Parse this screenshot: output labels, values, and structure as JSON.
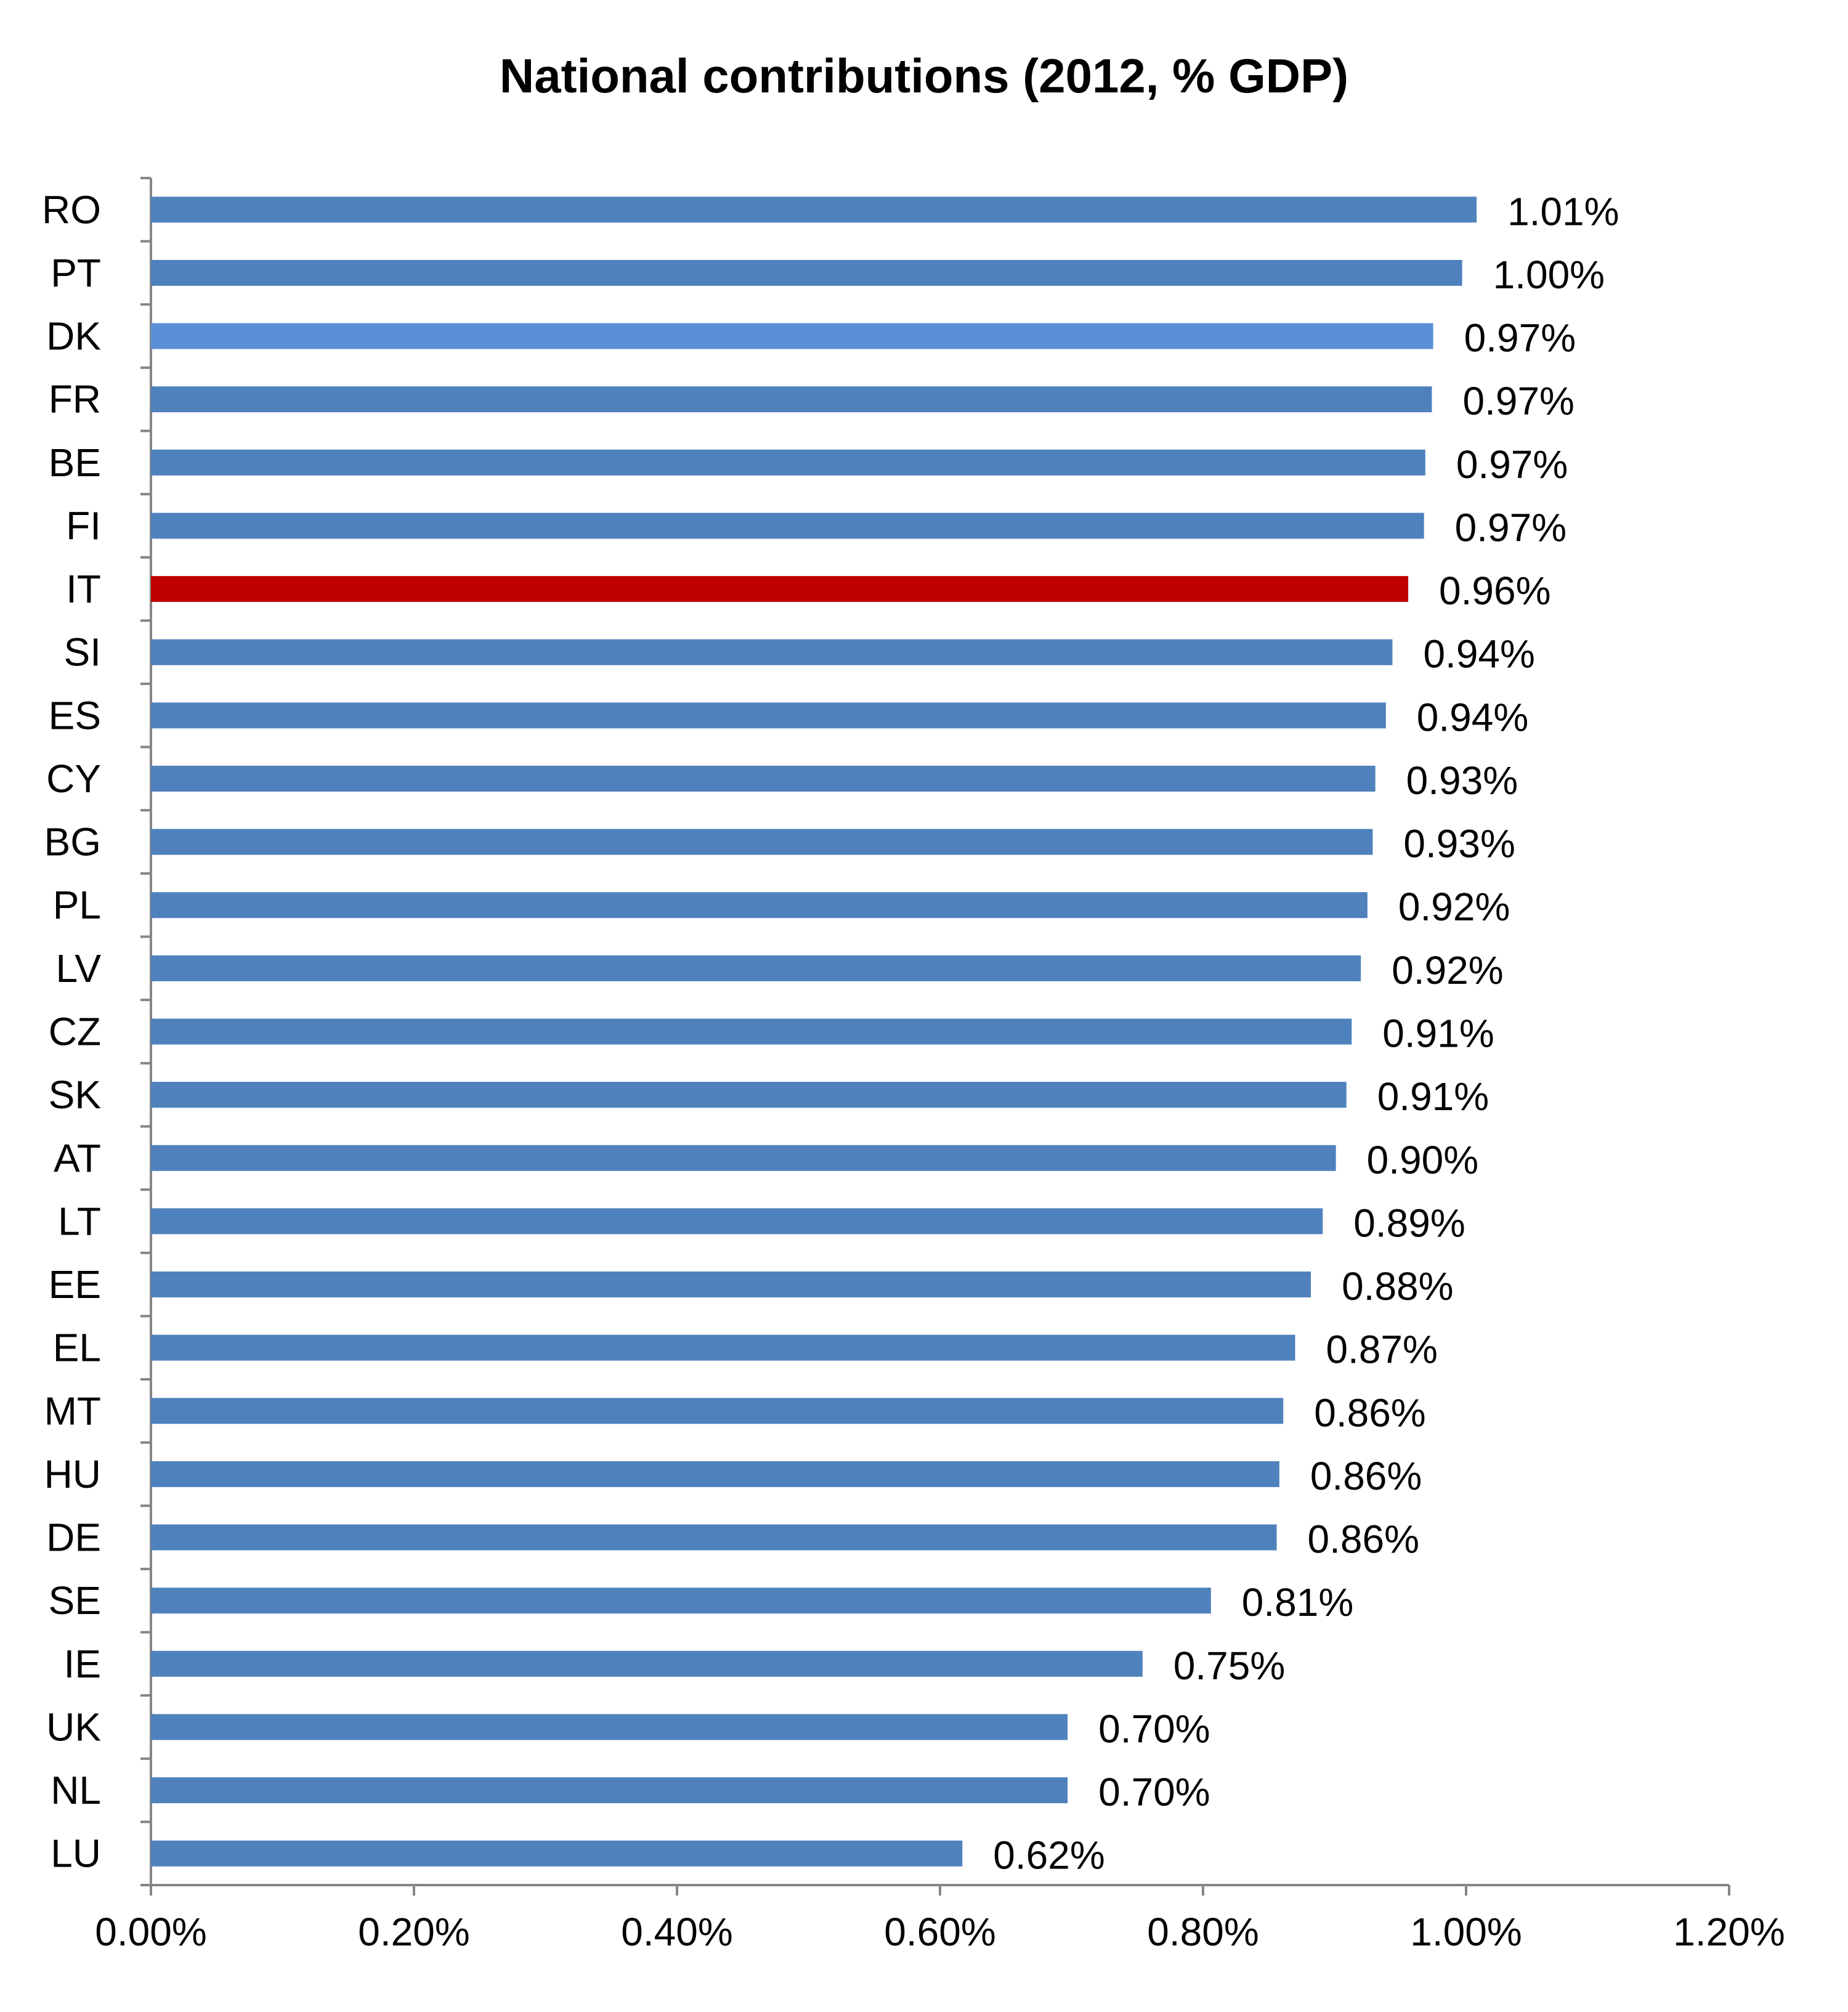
{
  "chart_data": {
    "type": "bar",
    "orientation": "horizontal",
    "title": "National contributions (2012, % GDP)",
    "xlabel": "",
    "ylabel": "",
    "xlim": [
      0,
      1.2
    ],
    "x_ticks": [
      "0.00%",
      "0.20%",
      "0.40%",
      "0.60%",
      "0.80%",
      "1.00%",
      "1.20%"
    ],
    "x_tick_values": [
      0,
      0.2,
      0.4,
      0.6,
      0.8,
      1.0,
      1.2
    ],
    "grid": false,
    "legend": "none",
    "default_color": "#4f81bd",
    "categories": [
      "RO",
      "PT",
      "DK",
      "FR",
      "BE",
      "FI",
      "IT",
      "SI",
      "ES",
      "CY",
      "BG",
      "PL",
      "LV",
      "CZ",
      "SK",
      "AT",
      "LT",
      "EE",
      "EL",
      "MT",
      "HU",
      "DE",
      "SE",
      "IE",
      "UK",
      "NL",
      "LU"
    ],
    "values": [
      1.008,
      0.997,
      0.975,
      0.974,
      0.969,
      0.968,
      0.956,
      0.944,
      0.939,
      0.931,
      0.929,
      0.925,
      0.92,
      0.913,
      0.909,
      0.901,
      0.891,
      0.882,
      0.87,
      0.861,
      0.858,
      0.856,
      0.806,
      0.754,
      0.697,
      0.697,
      0.617
    ],
    "data_labels": [
      "1.01%",
      "1.00%",
      "0.97%",
      "0.97%",
      "0.97%",
      "0.97%",
      "0.96%",
      "0.94%",
      "0.94%",
      "0.93%",
      "0.93%",
      "0.92%",
      "0.92%",
      "0.91%",
      "0.91%",
      "0.90%",
      "0.89%",
      "0.88%",
      "0.87%",
      "0.86%",
      "0.86%",
      "0.86%",
      "0.81%",
      "0.75%",
      "0.70%",
      "0.70%",
      "0.62%"
    ],
    "colors": [
      "#4f81bd",
      "#4f81bd",
      "#5b8fd6",
      "#4f81bd",
      "#4f81bd",
      "#4f81bd",
      "#c00000",
      "#4f81bd",
      "#4f81bd",
      "#4f81bd",
      "#4f81bd",
      "#4f81bd",
      "#4f81bd",
      "#4f81bd",
      "#4f81bd",
      "#4f81bd",
      "#4f81bd",
      "#4f81bd",
      "#4f81bd",
      "#4f81bd",
      "#4f81bd",
      "#4f81bd",
      "#4f81bd",
      "#4f81bd",
      "#4f81bd",
      "#4f81bd",
      "#4f81bd"
    ]
  }
}
